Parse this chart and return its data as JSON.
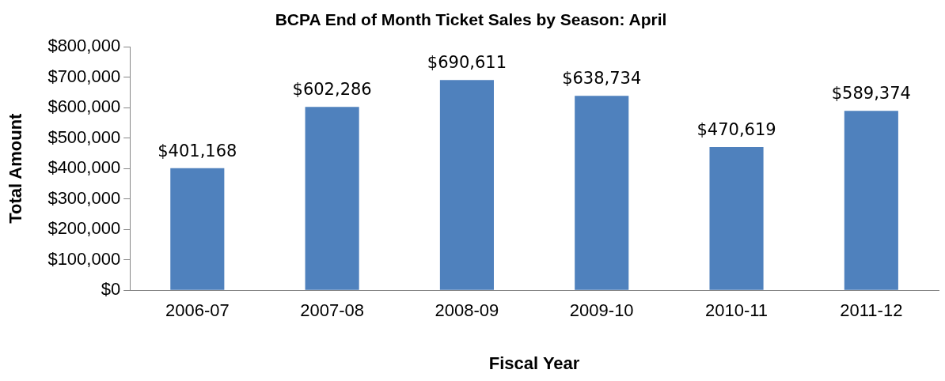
{
  "chart_data": {
    "type": "bar",
    "title": "BCPA End of Month Ticket Sales by Season: April",
    "xlabel": "Fiscal Year",
    "ylabel": "Total Amount",
    "categories": [
      "2006-07",
      "2007-08",
      "2008-09",
      "2009-10",
      "2010-11",
      "2011-12"
    ],
    "values": [
      401168,
      602286,
      690611,
      638734,
      470619,
      589374
    ],
    "value_labels": [
      "$401,168",
      "$602,286",
      "$690,611",
      "$638,734",
      "$470,619",
      "$589,374"
    ],
    "color": "#4f81bd",
    "ylim": [
      0,
      800000
    ],
    "yticks": [
      {
        "value": 0,
        "label": "$0"
      },
      {
        "value": 100000,
        "label": "$100,000"
      },
      {
        "value": 200000,
        "label": "$200,000"
      },
      {
        "value": 300000,
        "label": "$300,000"
      },
      {
        "value": 400000,
        "label": "$400,000"
      },
      {
        "value": 500000,
        "label": "$500,000"
      },
      {
        "value": 600000,
        "label": "$600,000"
      },
      {
        "value": 700000,
        "label": "$700,000"
      },
      {
        "value": 800000,
        "label": "$800,000"
      }
    ]
  }
}
